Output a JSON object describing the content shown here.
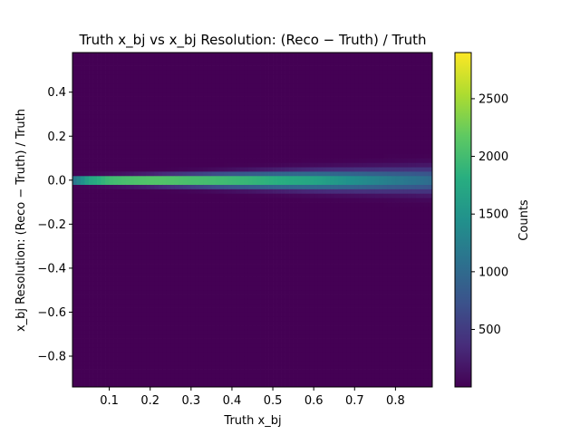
{
  "chart_data": {
    "type": "heatmap",
    "title": "Truth x_bj vs x_bj Resolution: (Reco − Truth) / Truth",
    "xlabel": "Truth x_bj",
    "ylabel": "x_bj Resolution: (Reco − Truth) / Truth",
    "colorbar_label": "Counts",
    "xlim": [
      0.01,
      0.89
    ],
    "ylim": [
      -0.94,
      0.58
    ],
    "x_ticks": [
      0.1,
      0.2,
      0.3,
      0.4,
      0.5,
      0.6,
      0.7,
      0.8
    ],
    "x_tick_labels": [
      "0.1",
      "0.2",
      "0.3",
      "0.4",
      "0.5",
      "0.6",
      "0.7",
      "0.8"
    ],
    "y_ticks": [
      0.4,
      0.2,
      0.0,
      -0.2,
      -0.4,
      -0.6,
      -0.8
    ],
    "y_tick_labels": [
      "0.4",
      "0.2",
      "0.0",
      "−0.2",
      "−0.4",
      "−0.6",
      "−0.8"
    ],
    "colorbar_range": [
      1,
      2900
    ],
    "colorbar_ticks": [
      500,
      1000,
      1500,
      2000,
      2500
    ],
    "colorbar_tick_labels": [
      "500",
      "1000",
      "1500",
      "2000",
      "2500"
    ],
    "colormap": "viridis",
    "bins": {
      "x": 88,
      "y": 76
    },
    "ridge": {
      "y_center": 0.0,
      "peak_counts_by_x": [
        [
          0.01,
          2000
        ],
        [
          0.05,
          2750
        ],
        [
          0.1,
          2900
        ],
        [
          0.2,
          2700
        ],
        [
          0.3,
          2400
        ],
        [
          0.4,
          2200
        ],
        [
          0.5,
          2000
        ],
        [
          0.6,
          1800
        ],
        [
          0.7,
          1500
        ],
        [
          0.8,
          1250
        ],
        [
          0.89,
          1050
        ]
      ],
      "spread_by_x": [
        [
          0.01,
          0.009
        ],
        [
          0.2,
          0.014
        ],
        [
          0.5,
          0.024
        ],
        [
          0.8,
          0.034
        ],
        [
          0.89,
          0.038
        ]
      ]
    },
    "grid": false
  }
}
